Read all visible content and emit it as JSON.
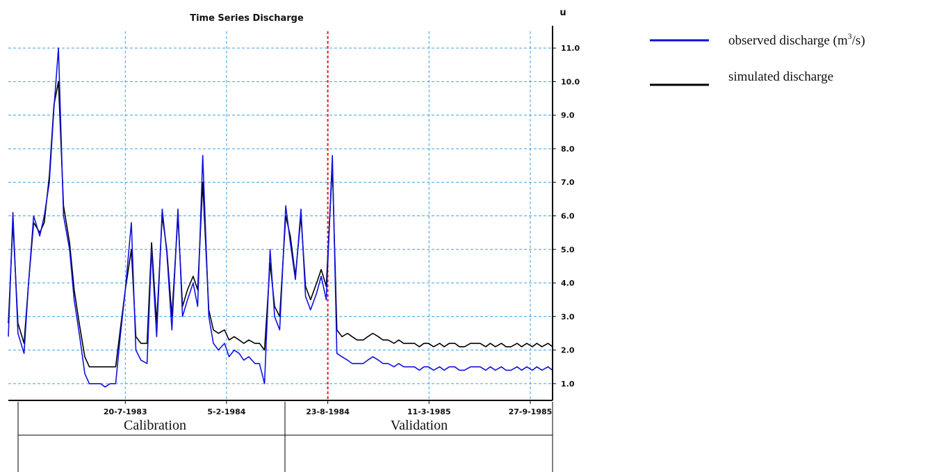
{
  "chart_data": {
    "type": "line",
    "title": "Time Series Discharge",
    "ylabel": "u",
    "xlabel": "",
    "ylim": [
      0.5,
      11.5
    ],
    "y_ticks": [
      1.0,
      2.0,
      3.0,
      4.0,
      5.0,
      6.0,
      7.0,
      8.0,
      9.0,
      10.0,
      11.0
    ],
    "y_tick_labels": [
      "1.0",
      "2.0",
      "3.0",
      "4.0",
      "5.0",
      "6.0",
      "7.0",
      "8.0",
      "9.0",
      "10.0",
      "11.0"
    ],
    "x_tick_labels": [
      "20-7-1983",
      "5-2-1984",
      "23-8-1984",
      "11-3-1985",
      "27-9-1985"
    ],
    "x_tick_dates": [
      "1983-07-20",
      "1984-02-05",
      "1984-08-23",
      "1985-03-11",
      "1985-09-27"
    ],
    "grid": true,
    "split_line_date": "1984-08-23",
    "periods": [
      "Calibration",
      "Validation"
    ],
    "legend": {
      "placement": "right",
      "entries": [
        {
          "label": "observed discharge (m",
          "sup": "3",
          "suffix": "/s)",
          "color": "#1010e0"
        },
        {
          "label": "simulated discharge",
          "color": "#000000"
        }
      ]
    },
    "series": [
      {
        "name": "observed discharge",
        "color": "#1010e0",
        "x": [
          "1982-12-01",
          "1982-12-10",
          "1982-12-20",
          "1983-01-01",
          "1983-01-10",
          "1983-01-20",
          "1983-02-01",
          "1983-02-10",
          "1983-02-20",
          "1983-03-01",
          "1983-03-10",
          "1983-03-20",
          "1983-04-01",
          "1983-04-10",
          "1983-04-20",
          "1983-05-01",
          "1983-05-10",
          "1983-05-20",
          "1983-06-01",
          "1983-06-10",
          "1983-06-20",
          "1983-07-01",
          "1983-07-10",
          "1983-07-20",
          "1983-08-01",
          "1983-08-10",
          "1983-08-20",
          "1983-09-01",
          "1983-09-10",
          "1983-09-20",
          "1983-10-01",
          "1983-10-10",
          "1983-10-20",
          "1983-11-01",
          "1983-11-10",
          "1983-11-20",
          "1983-12-01",
          "1983-12-10",
          "1983-12-20",
          "1984-01-01",
          "1984-01-10",
          "1984-01-20",
          "1984-02-01",
          "1984-02-10",
          "1984-02-20",
          "1984-03-01",
          "1984-03-10",
          "1984-03-20",
          "1984-04-01",
          "1984-04-10",
          "1984-04-20",
          "1984-05-01",
          "1984-05-10",
          "1984-05-20",
          "1984-06-01",
          "1984-06-10",
          "1984-06-20",
          "1984-07-01",
          "1984-07-10",
          "1984-07-20",
          "1984-08-01",
          "1984-08-10",
          "1984-08-20",
          "1984-09-01",
          "1984-09-10",
          "1984-09-20",
          "1984-10-01",
          "1984-10-10",
          "1984-10-20",
          "1984-11-01",
          "1984-11-10",
          "1984-11-20",
          "1984-12-01",
          "1984-12-10",
          "1984-12-20",
          "1985-01-01",
          "1985-01-10",
          "1985-01-20",
          "1985-02-01",
          "1985-02-10",
          "1985-02-20",
          "1985-03-01",
          "1985-03-10",
          "1985-03-20",
          "1985-04-01",
          "1985-04-10",
          "1985-04-20",
          "1985-05-01",
          "1985-05-10",
          "1985-05-20",
          "1985-06-01",
          "1985-06-10",
          "1985-06-20",
          "1985-07-01",
          "1985-07-10",
          "1985-07-20",
          "1985-08-01",
          "1985-08-10",
          "1985-08-20",
          "1985-09-01",
          "1985-09-10",
          "1985-09-20",
          "1985-10-01",
          "1985-10-10",
          "1985-10-20",
          "1985-11-01",
          "1985-11-10"
        ],
        "values": [
          2.4,
          6.1,
          2.5,
          1.9,
          4.0,
          6.0,
          5.4,
          6.0,
          7.0,
          9.2,
          11.0,
          6.0,
          5.0,
          3.5,
          2.5,
          1.3,
          1.0,
          1.0,
          1.0,
          0.9,
          1.0,
          1.0,
          2.4,
          3.8,
          5.8,
          2.0,
          1.7,
          1.6,
          5.0,
          2.4,
          6.2,
          4.9,
          2.6,
          6.2,
          3.0,
          3.5,
          4.0,
          3.3,
          7.8,
          3.0,
          2.2,
          2.0,
          2.2,
          1.8,
          2.0,
          1.9,
          1.7,
          1.8,
          1.6,
          1.6,
          1.0,
          5.0,
          3.0,
          2.6,
          6.3,
          5.2,
          4.1,
          6.2,
          3.6,
          3.2,
          3.7,
          4.2,
          3.5,
          7.8,
          1.9,
          1.8,
          1.7,
          1.6,
          1.6,
          1.6,
          1.7,
          1.8,
          1.7,
          1.6,
          1.6,
          1.5,
          1.6,
          1.5,
          1.5,
          1.5,
          1.4,
          1.5,
          1.5,
          1.4,
          1.5,
          1.4,
          1.5,
          1.5,
          1.4,
          1.4,
          1.5,
          1.5,
          1.5,
          1.4,
          1.5,
          1.4,
          1.5,
          1.4,
          1.4,
          1.5,
          1.4,
          1.5,
          1.4,
          1.5,
          1.4,
          1.5,
          1.4
        ]
      },
      {
        "name": "simulated discharge",
        "color": "#000000",
        "x": [
          "1982-12-01",
          "1982-12-10",
          "1982-12-20",
          "1983-01-01",
          "1983-01-10",
          "1983-01-20",
          "1983-02-01",
          "1983-02-10",
          "1983-02-20",
          "1983-03-01",
          "1983-03-10",
          "1983-03-20",
          "1983-04-01",
          "1983-04-10",
          "1983-04-20",
          "1983-05-01",
          "1983-05-10",
          "1983-05-20",
          "1983-06-01",
          "1983-06-10",
          "1983-06-20",
          "1983-07-01",
          "1983-07-10",
          "1983-07-20",
          "1983-08-01",
          "1983-08-10",
          "1983-08-20",
          "1983-09-01",
          "1983-09-10",
          "1983-09-20",
          "1983-10-01",
          "1983-10-10",
          "1983-10-20",
          "1983-11-01",
          "1983-11-10",
          "1983-11-20",
          "1983-12-01",
          "1983-12-10",
          "1983-12-20",
          "1984-01-01",
          "1984-01-10",
          "1984-01-20",
          "1984-02-01",
          "1984-02-10",
          "1984-02-20",
          "1984-03-01",
          "1984-03-10",
          "1984-03-20",
          "1984-04-01",
          "1984-04-10",
          "1984-04-20",
          "1984-05-01",
          "1984-05-10",
          "1984-05-20",
          "1984-06-01",
          "1984-06-10",
          "1984-06-20",
          "1984-07-01",
          "1984-07-10",
          "1984-07-20",
          "1984-08-01",
          "1984-08-10",
          "1984-08-20",
          "1984-09-01",
          "1984-09-10",
          "1984-09-20",
          "1984-10-01",
          "1984-10-10",
          "1984-10-20",
          "1984-11-01",
          "1984-11-10",
          "1984-11-20",
          "1984-12-01",
          "1984-12-10",
          "1984-12-20",
          "1985-01-01",
          "1985-01-10",
          "1985-01-20",
          "1985-02-01",
          "1985-02-10",
          "1985-02-20",
          "1985-03-01",
          "1985-03-10",
          "1985-03-20",
          "1985-04-01",
          "1985-04-10",
          "1985-04-20",
          "1985-05-01",
          "1985-05-10",
          "1985-05-20",
          "1985-06-01",
          "1985-06-10",
          "1985-06-20",
          "1985-07-01",
          "1985-07-10",
          "1985-07-20",
          "1985-08-01",
          "1985-08-10",
          "1985-08-20",
          "1985-09-01",
          "1985-09-10",
          "1985-09-20",
          "1985-10-01",
          "1985-10-10",
          "1985-10-20",
          "1985-11-01",
          "1985-11-10"
        ],
        "values": [
          2.8,
          5.8,
          2.8,
          2.2,
          4.0,
          5.8,
          5.5,
          5.8,
          7.2,
          9.3,
          10.0,
          6.3,
          5.2,
          3.8,
          2.8,
          1.8,
          1.5,
          1.5,
          1.5,
          1.5,
          1.5,
          1.5,
          2.6,
          3.8,
          5.0,
          2.4,
          2.2,
          2.2,
          5.2,
          2.8,
          6.0,
          5.0,
          3.0,
          6.0,
          3.3,
          3.8,
          4.2,
          3.8,
          7.0,
          3.2,
          2.6,
          2.5,
          2.6,
          2.3,
          2.4,
          2.3,
          2.2,
          2.3,
          2.2,
          2.2,
          2.0,
          4.6,
          3.3,
          3.0,
          6.0,
          5.4,
          4.2,
          6.0,
          3.9,
          3.5,
          4.0,
          4.4,
          3.9,
          7.5,
          2.6,
          2.4,
          2.5,
          2.4,
          2.3,
          2.3,
          2.4,
          2.5,
          2.4,
          2.3,
          2.3,
          2.2,
          2.3,
          2.2,
          2.2,
          2.2,
          2.1,
          2.2,
          2.2,
          2.1,
          2.2,
          2.1,
          2.2,
          2.2,
          2.1,
          2.1,
          2.2,
          2.2,
          2.2,
          2.1,
          2.2,
          2.1,
          2.2,
          2.1,
          2.1,
          2.2,
          2.1,
          2.2,
          2.1,
          2.2,
          2.1,
          2.2,
          2.1
        ]
      }
    ]
  }
}
